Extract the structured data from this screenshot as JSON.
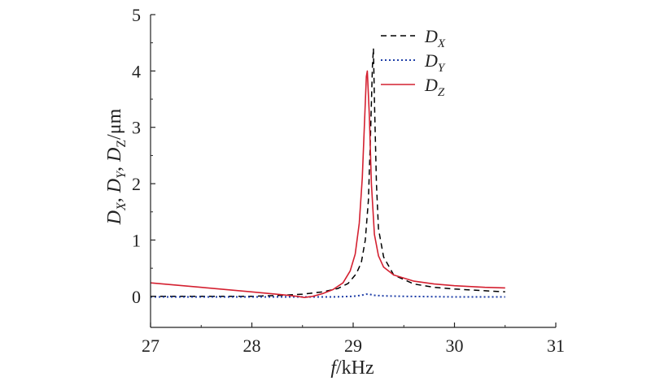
{
  "chart_data": {
    "type": "line",
    "title": "",
    "xlabel": {
      "italic": "f",
      "rest": "/kHz"
    },
    "ylabel": {
      "text": "D_X, D_Y, D_Z/μm"
    },
    "xlim": [
      27,
      31
    ],
    "ylim": [
      -0.55,
      5
    ],
    "xticks": [
      27,
      28,
      29,
      30,
      31
    ],
    "yticks": [
      0,
      1,
      2,
      3,
      4,
      5
    ],
    "grid": false,
    "legend_position": "top-right",
    "series": [
      {
        "name": "D_X",
        "legend_main": "D",
        "legend_sub": "X",
        "color": "#000000",
        "dash": "dashed",
        "x": [
          27.0,
          27.5,
          28.0,
          28.3,
          28.5,
          28.7,
          28.85,
          28.95,
          29.03,
          29.08,
          29.12,
          29.15,
          29.17,
          29.19,
          29.2,
          29.21,
          29.23,
          29.25,
          29.3,
          29.4,
          29.6,
          29.8,
          30.0,
          30.3,
          30.5
        ],
        "y": [
          0.0,
          0.0,
          0.0,
          0.02,
          0.04,
          0.08,
          0.14,
          0.23,
          0.4,
          0.6,
          1.0,
          1.7,
          2.8,
          4.1,
          4.4,
          3.5,
          2.0,
          1.2,
          0.7,
          0.38,
          0.22,
          0.16,
          0.13,
          0.1,
          0.08
        ]
      },
      {
        "name": "D_Y",
        "legend_main": "D",
        "legend_sub": "Y",
        "color": "#1f3fa8",
        "dash": "dotted",
        "x": [
          27.0,
          27.5,
          28.0,
          28.5,
          28.8,
          29.0,
          29.08,
          29.13,
          29.16,
          29.2,
          29.3,
          29.5,
          30.0,
          30.5
        ],
        "y": [
          -0.01,
          -0.01,
          -0.01,
          -0.01,
          -0.01,
          0.0,
          0.02,
          0.04,
          0.04,
          0.02,
          0.01,
          0.0,
          -0.01,
          -0.01
        ]
      },
      {
        "name": "D_Z",
        "legend_main": "D",
        "legend_sub": "Z",
        "color": "#d42030",
        "dash": "solid",
        "x": [
          27.0,
          27.5,
          28.0,
          28.3,
          28.45,
          28.52,
          28.6,
          28.7,
          28.8,
          28.9,
          28.97,
          29.02,
          29.06,
          29.09,
          29.11,
          29.13,
          29.14,
          29.16,
          29.18,
          29.21,
          29.25,
          29.3,
          29.4,
          29.6,
          29.8,
          30.0,
          30.3,
          30.5
        ],
        "y": [
          0.24,
          0.16,
          0.08,
          0.03,
          0.0,
          -0.02,
          0.0,
          0.05,
          0.12,
          0.24,
          0.45,
          0.75,
          1.3,
          2.1,
          3.0,
          3.9,
          4.0,
          3.2,
          2.0,
          1.1,
          0.72,
          0.52,
          0.38,
          0.27,
          0.22,
          0.19,
          0.16,
          0.15
        ]
      }
    ]
  }
}
